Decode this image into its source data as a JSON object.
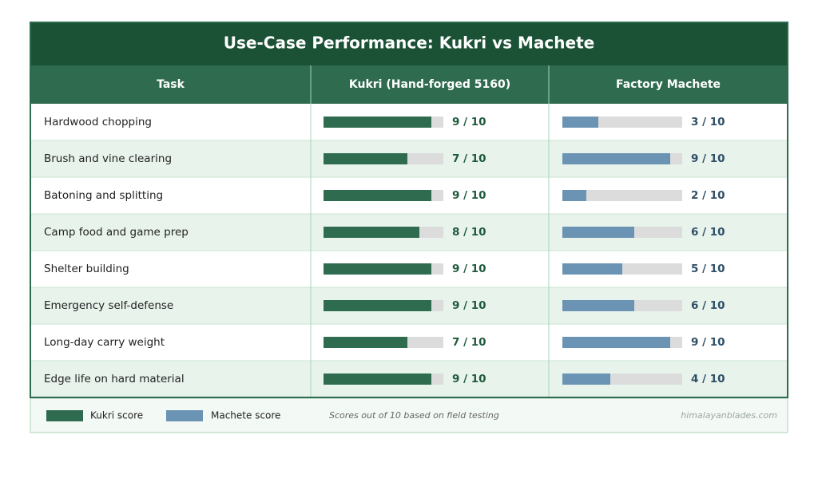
{
  "title": "Use-Case Performance: Kukri vs Machete",
  "table": {
    "headers": [
      "Task",
      "Kukri  (Hand-forged 5160)",
      "Factory Machete"
    ],
    "score_range": [
      0,
      10
    ],
    "colors": {
      "kukri": "#2e6b4f",
      "machete": "#6b93b3"
    },
    "rows": [
      {
        "task": "Hardwood chopping",
        "kukri": {
          "value": 9,
          "label": "9 / 10"
        },
        "machete": {
          "value": 3,
          "label": "3 / 10"
        }
      },
      {
        "task": "Brush and vine clearing",
        "kukri": {
          "value": 7,
          "label": "7 / 10"
        },
        "machete": {
          "value": 9,
          "label": "9 / 10"
        }
      },
      {
        "task": "Batoning and splitting",
        "kukri": {
          "value": 9,
          "label": "9 / 10"
        },
        "machete": {
          "value": 2,
          "label": "2 / 10"
        }
      },
      {
        "task": "Camp food and game prep",
        "kukri": {
          "value": 8,
          "label": "8 / 10"
        },
        "machete": {
          "value": 6,
          "label": "6 / 10"
        }
      },
      {
        "task": "Shelter building",
        "kukri": {
          "value": 9,
          "label": "9 / 10"
        },
        "machete": {
          "value": 5,
          "label": "5 / 10"
        }
      },
      {
        "task": "Emergency self-defense",
        "kukri": {
          "value": 9,
          "label": "9 / 10"
        },
        "machete": {
          "value": 6,
          "label": "6 / 10"
        }
      },
      {
        "task": "Long-day carry weight",
        "kukri": {
          "value": 7,
          "label": "7 / 10"
        },
        "machete": {
          "value": 9,
          "label": "9 / 10"
        }
      },
      {
        "task": "Edge life on hard material",
        "kukri": {
          "value": 9,
          "label": "9 / 10"
        },
        "machete": {
          "value": 4,
          "label": "4 / 10"
        }
      }
    ]
  },
  "footer": {
    "legend": [
      "Kukri score",
      "Machete score"
    ],
    "note": "Scores out of 10 based on field testing",
    "source": "himalayanblades.com"
  }
}
